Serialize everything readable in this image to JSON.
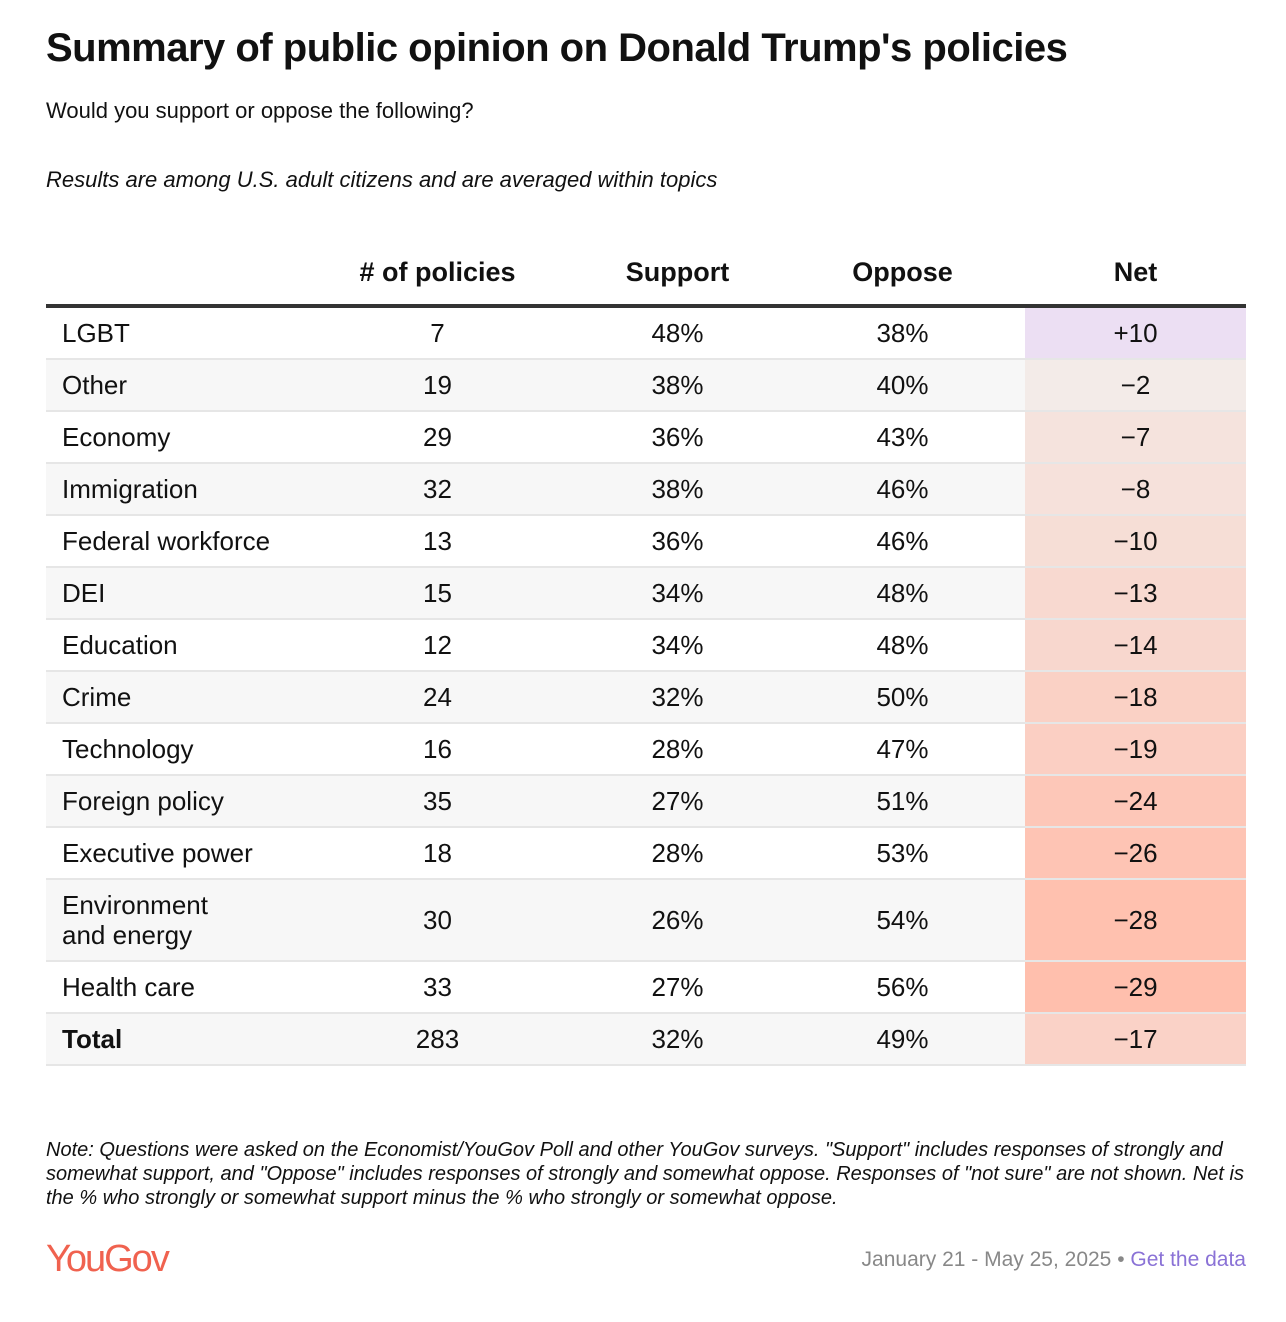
{
  "title": "Summary of public opinion on Donald Trump's policies",
  "subtitle": "Would you support or oppose the following?",
  "subtitle2": "Results are among U.S. adult citizens and are averaged within topics",
  "chart_data": {
    "type": "table",
    "columns": [
      "",
      "# of policies",
      "Support",
      "Oppose",
      "Net"
    ],
    "rows": [
      [
        "LGBT",
        "7",
        "48%",
        "38%",
        "+10"
      ],
      [
        "Other",
        "19",
        "38%",
        "40%",
        "−2"
      ],
      [
        "Economy",
        "29",
        "36%",
        "43%",
        "−7"
      ],
      [
        "Immigration",
        "32",
        "38%",
        "46%",
        "−8"
      ],
      [
        "Federal workforce",
        "13",
        "36%",
        "46%",
        "−10"
      ],
      [
        "DEI",
        "15",
        "34%",
        "48%",
        "−13"
      ],
      [
        "Education",
        "12",
        "34%",
        "48%",
        "−14"
      ],
      [
        "Crime",
        "24",
        "32%",
        "50%",
        "−18"
      ],
      [
        "Technology",
        "16",
        "28%",
        "47%",
        "−19"
      ],
      [
        "Foreign policy",
        "35",
        "27%",
        "51%",
        "−24"
      ],
      [
        "Executive power",
        "18",
        "28%",
        "53%",
        "−26"
      ],
      [
        "Environment and energy",
        "30",
        "26%",
        "54%",
        "−28"
      ],
      [
        "Health care",
        "33",
        "27%",
        "56%",
        "−29"
      ],
      [
        "Total",
        "283",
        "32%",
        "49%",
        "−17"
      ]
    ],
    "net_values": [
      10,
      -2,
      -7,
      -8,
      -10,
      -13,
      -14,
      -18,
      -19,
      -24,
      -26,
      -28,
      -29,
      -17
    ]
  },
  "colors": {
    "positive": "#ecdff3",
    "neutral": "#f2eeec",
    "negative": "#ffbfad",
    "logo": "#f0624f",
    "link": "#8a72d6"
  },
  "note": "Note: Questions were asked on the Economist/YouGov Poll and other YouGov surveys. \"Support\" includes responses of strongly and somewhat support, and \"Oppose\" includes responses of strongly and somewhat oppose. Responses of \"not sure\" are not shown. Net is the % who strongly or somewhat support minus the % who strongly or somewhat oppose.",
  "footer": {
    "logo": "YouGov",
    "dates": "January 21 - May 25, 2025",
    "separator": " • ",
    "link": "Get the data"
  }
}
